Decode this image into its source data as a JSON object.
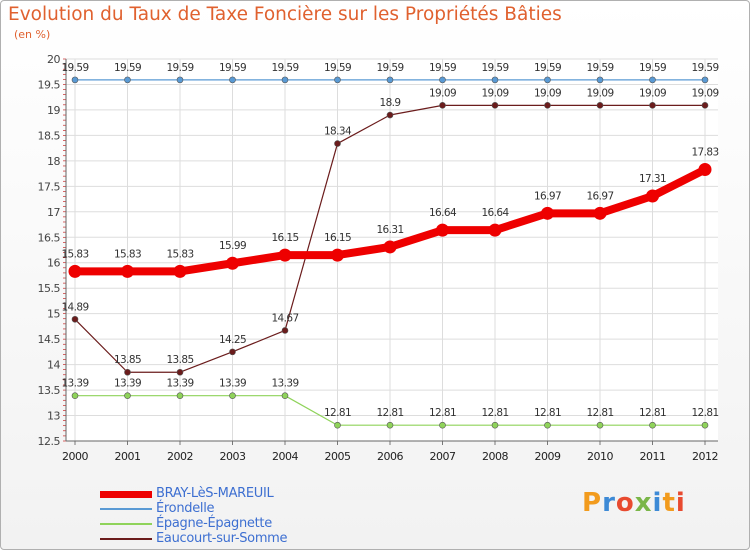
{
  "header": {
    "title": "Evolution du Taux de Taxe Foncière sur les Propriétés Bâties",
    "unit": "(en %)"
  },
  "logo": {
    "text": [
      "P",
      "r",
      "o",
      "x",
      "i",
      "t",
      "i"
    ],
    "colors": [
      "#f29b1d",
      "#3d8ad6",
      "#e84a2f",
      "#7ab648",
      "#3d8ad6",
      "#f29b1d",
      "#e84a2f"
    ]
  },
  "chart_data": {
    "type": "line",
    "title": "Evolution du Taux de Taxe Foncière sur les Propriétés Bâties",
    "ylabel": "(en %)",
    "xlabel": "",
    "ylim": [
      12.5,
      20
    ],
    "yticks": [
      "12.5",
      "13",
      "13.5",
      "14",
      "14.5",
      "15",
      "15.5",
      "16",
      "16.5",
      "17",
      "17.5",
      "18",
      "18.5",
      "19",
      "19.5",
      "20"
    ],
    "categories": [
      "2000",
      "2001",
      "2002",
      "2003",
      "2004",
      "2005",
      "2006",
      "2007",
      "2008",
      "2009",
      "2010",
      "2011",
      "2012"
    ],
    "grid": true,
    "series": [
      {
        "name": "BRAY-LèS-MAREUIL",
        "color": "#ee0000",
        "values": [
          15.83,
          15.83,
          15.83,
          15.99,
          16.15,
          16.15,
          16.31,
          16.64,
          16.64,
          16.97,
          16.97,
          17.31,
          17.83
        ],
        "labels": [
          "15.83",
          "15.83",
          "15.83",
          "15.99",
          "16.15",
          "16.15",
          "16.31",
          "16.64",
          "16.64",
          "16.97",
          "16.97",
          "17.31",
          "17.83"
        ]
      },
      {
        "name": "Érondelle",
        "color": "#5a9ad4",
        "values": [
          19.59,
          19.59,
          19.59,
          19.59,
          19.59,
          19.59,
          19.59,
          19.59,
          19.59,
          19.59,
          19.59,
          19.59,
          19.59
        ],
        "labels": [
          "19.59",
          "19.59",
          "19.59",
          "19.59",
          "19.59",
          "19.59",
          "19.59",
          "19.59",
          "19.59",
          "19.59",
          "19.59",
          "19.59",
          "19.59"
        ]
      },
      {
        "name": "Épagne-Épagnette",
        "color": "#8fd35a",
        "values": [
          13.39,
          13.39,
          13.39,
          13.39,
          13.39,
          12.81,
          12.81,
          12.81,
          12.81,
          12.81,
          12.81,
          12.81,
          12.81
        ],
        "labels": [
          "13.39",
          "13.39",
          "13.39",
          "13.39",
          "13.39",
          "12.81",
          "12.81",
          "12.81",
          "12.81",
          "12.81",
          "12.81",
          "12.81",
          "12.81"
        ]
      },
      {
        "name": "Eaucourt-sur-Somme",
        "color": "#6b1c1c",
        "values": [
          14.89,
          13.85,
          13.85,
          14.25,
          14.67,
          18.34,
          18.9,
          19.09,
          19.09,
          19.09,
          19.09,
          19.09,
          19.09
        ],
        "labels": [
          "14.89",
          "13.85",
          "13.85",
          "14.25",
          "14.67",
          "18.34",
          "18.9",
          "19.09",
          "19.09",
          "19.09",
          "19.09",
          "19.09",
          "19.09"
        ]
      }
    ]
  }
}
